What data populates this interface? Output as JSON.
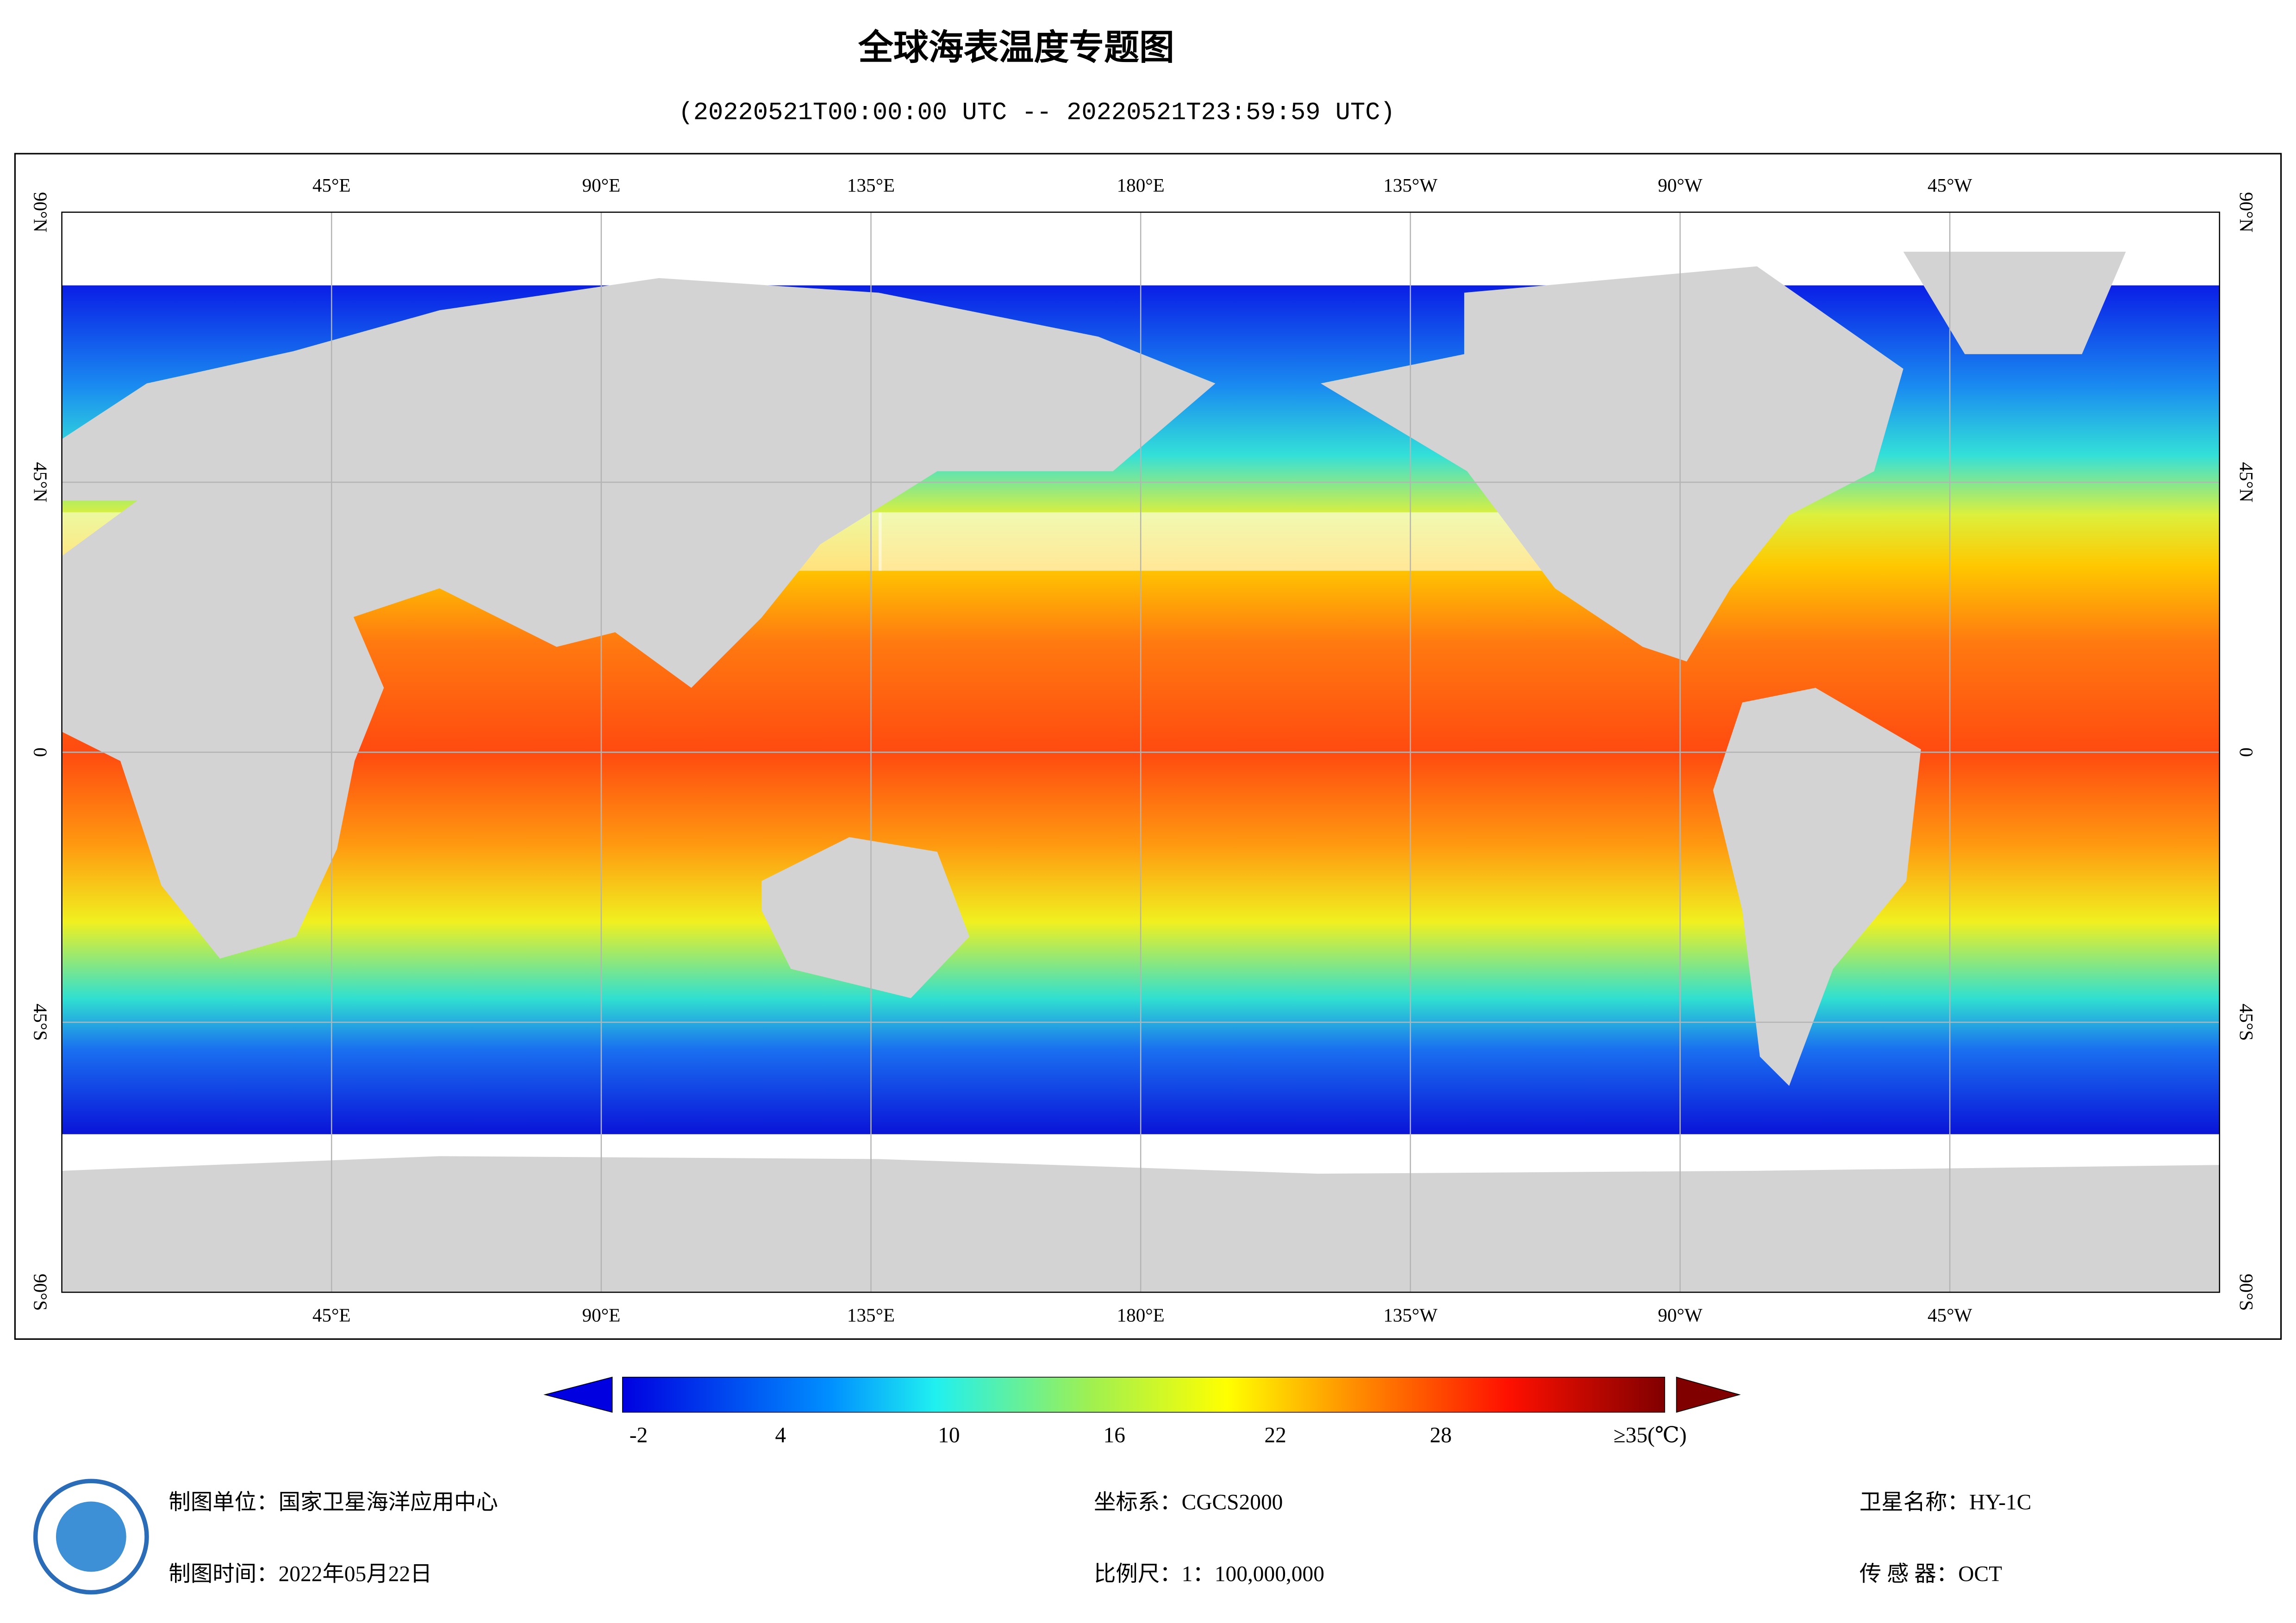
{
  "header": {
    "title": "全球海表温度专题图",
    "subtitle": "(20220521T00:00:00 UTC -- 20220521T23:59:59 UTC)"
  },
  "map": {
    "lon_labels": [
      "45°E",
      "90°E",
      "135°E",
      "180°E",
      "135°W",
      "90°W",
      "45°W"
    ],
    "lat_labels": [
      "90°N",
      "45°N",
      "0",
      "45°S",
      "90°S"
    ]
  },
  "legend": {
    "labels": [
      "-2",
      "4",
      "10",
      "16",
      "22",
      "28",
      "≥35(℃)"
    ]
  },
  "footer": {
    "producer": "制图单位：国家卫星海洋应用中心",
    "date": "制图时间：2022年05月22日",
    "crs": "坐标系：CGCS2000",
    "scale": "比例尺：1：100,000,000",
    "satellite": "卫星名称：HY-1C",
    "sensor": "传 感 器：OCT"
  }
}
